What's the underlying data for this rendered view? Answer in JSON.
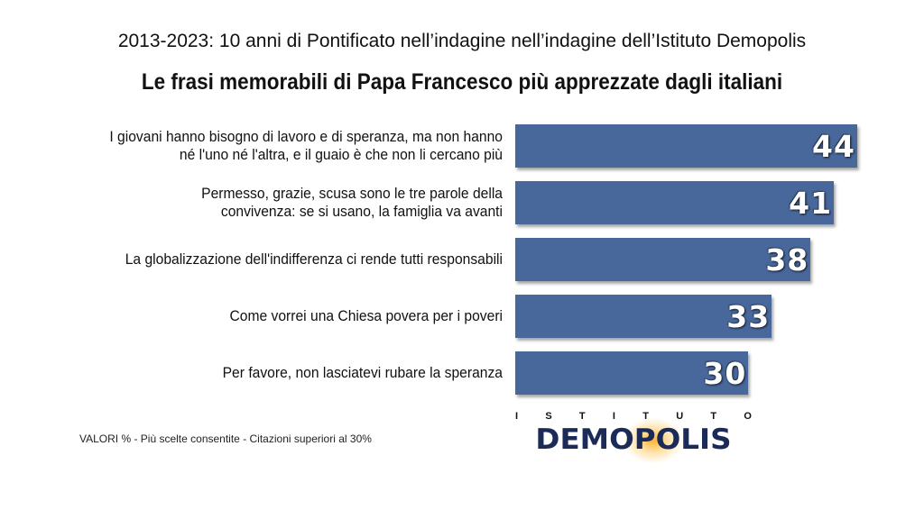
{
  "header": {
    "supertitle": "2013-2023: 10 anni di Pontificato nell’indagine nell’indagine dell’Istituto Demopolis",
    "title": "Le frasi memorabili di Papa Francesco più apprezzate dagli italiani"
  },
  "chart_data": {
    "type": "bar",
    "orientation": "horizontal",
    "title": "Le frasi memorabili di Papa Francesco più apprezzate dagli italiani",
    "categories": [
      [
        "I giovani hanno bisogno di lavoro e di speranza, ma non hanno",
        "né l'uno né l'altra, e il guaio è che non li cercano più"
      ],
      [
        "Permesso, grazie, scusa sono le tre parole della",
        "convivenza: se si usano, la famiglia va avanti"
      ],
      [
        "La globalizzazione dell'indifferenza ci rende tutti responsabili"
      ],
      [
        "Come vorrei una Chiesa povera per i poveri"
      ],
      [
        "Per favore, non lasciatevi rubare la speranza"
      ]
    ],
    "values": [
      44,
      41,
      38,
      33,
      30
    ],
    "data_labels": [
      "44",
      "41",
      "38",
      "33",
      "30"
    ],
    "bar_color": "#48679a",
    "xlim": [
      0,
      44
    ],
    "grid": false
  },
  "footnote": "VALORI % - Più scelte consentite - Citazioni superiori al 30%",
  "logo": {
    "top_text": [
      "I",
      "S",
      "T",
      "I",
      "T",
      "U",
      "T",
      "O"
    ],
    "main_text": "DEMOPOLIS",
    "color": "#1c2a57",
    "glow_color": "#ffb028"
  }
}
